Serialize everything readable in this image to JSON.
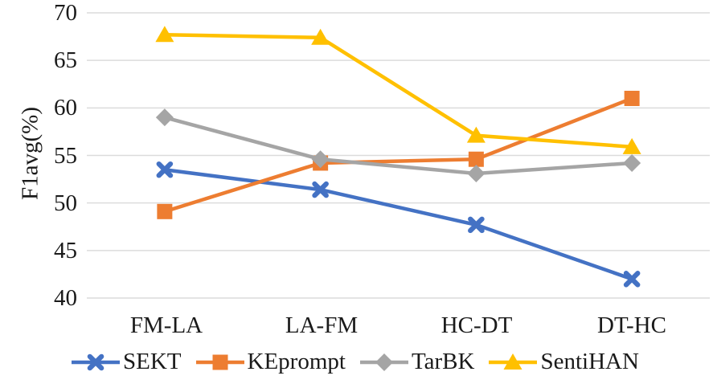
{
  "chart_data": {
    "type": "line",
    "title": "",
    "xlabel": "",
    "ylabel": "F1avg(%)",
    "ylim": [
      40,
      70
    ],
    "yticks": [
      70,
      65,
      60,
      55,
      50,
      45,
      40
    ],
    "categories": [
      "FM-LA",
      "LA-FM",
      "HC-DT",
      "DT-HC"
    ],
    "grid": "horizontal",
    "gridline_color": "#dcdcdc",
    "legend_position": "bottom",
    "series": [
      {
        "name": "SEKT",
        "color": "#4472C4",
        "marker": "x",
        "values": [
          53.5,
          51.4,
          47.7,
          42.0
        ]
      },
      {
        "name": "KEprompt",
        "color": "#ED7D31",
        "marker": "square",
        "values": [
          49.1,
          54.2,
          54.6,
          61.0
        ]
      },
      {
        "name": "TarBK",
        "color": "#A5A5A5",
        "marker": "diamond",
        "values": [
          59.0,
          54.6,
          53.1,
          54.2
        ]
      },
      {
        "name": "SentiHAN",
        "color": "#FFC000",
        "marker": "triangle",
        "values": [
          67.7,
          67.4,
          57.1,
          55.9
        ]
      }
    ]
  }
}
